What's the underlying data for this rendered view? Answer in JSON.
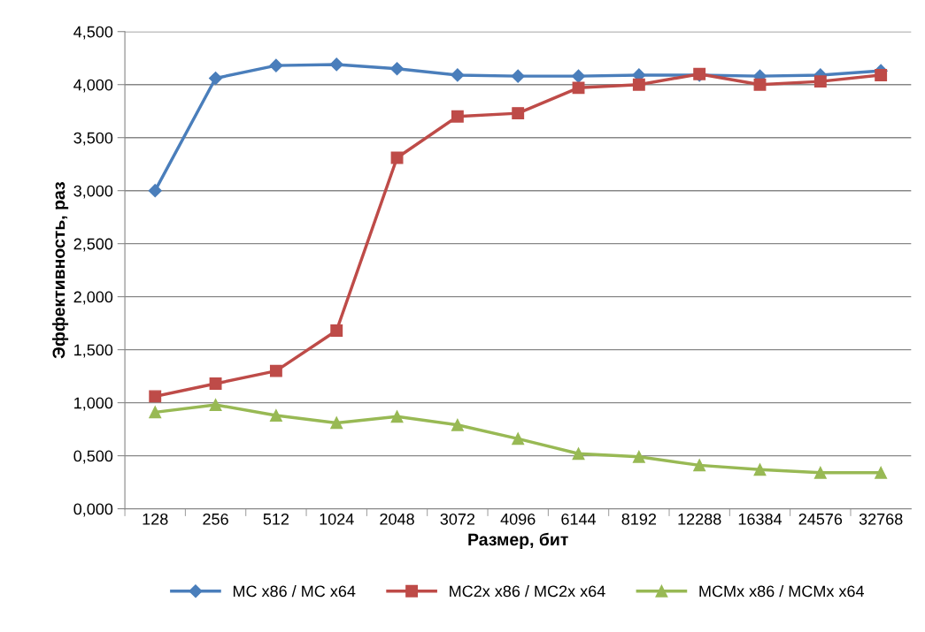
{
  "chart_data": {
    "type": "line",
    "xlabel": "Размер, бит",
    "ylabel": "Эффективность, раз",
    "categories": [
      "128",
      "256",
      "512",
      "1024",
      "2048",
      "3072",
      "4096",
      "6144",
      "8192",
      "12288",
      "16384",
      "24576",
      "32768"
    ],
    "series": [
      {
        "name": "MC x86 / MC x64",
        "color": "#4a7ebb",
        "marker": "diamond",
        "values": [
          3.0,
          4.06,
          4.18,
          4.19,
          4.15,
          4.09,
          4.08,
          4.08,
          4.09,
          4.09,
          4.08,
          4.09,
          4.13
        ]
      },
      {
        "name": "MC2x x86 / MC2x x64",
        "color": "#be4b48",
        "marker": "square",
        "values": [
          1.06,
          1.18,
          1.3,
          1.68,
          3.31,
          3.7,
          3.73,
          3.97,
          4.0,
          4.1,
          4.0,
          4.03,
          4.09
        ]
      },
      {
        "name": "MCMx x86 / MCMx x64",
        "color": "#98b954",
        "marker": "triangle",
        "values": [
          0.91,
          0.98,
          0.88,
          0.81,
          0.87,
          0.79,
          0.66,
          0.52,
          0.49,
          0.41,
          0.37,
          0.34,
          0.34
        ]
      }
    ],
    "ylim": [
      0,
      4.5
    ],
    "yticks": [
      {
        "value": 0,
        "label": "0,000"
      },
      {
        "value": 0.5,
        "label": "0,500"
      },
      {
        "value": 1,
        "label": "1,000"
      },
      {
        "value": 1.5,
        "label": "1,500"
      },
      {
        "value": 2,
        "label": "2,000"
      },
      {
        "value": 2.5,
        "label": "2,500"
      },
      {
        "value": 3,
        "label": "3,000"
      },
      {
        "value": 3.5,
        "label": "3,500"
      },
      {
        "value": 4,
        "label": "4,000"
      },
      {
        "value": 4.5,
        "label": "4,500"
      }
    ],
    "grid": "y",
    "legend": "bottom",
    "line_style": "solid"
  }
}
